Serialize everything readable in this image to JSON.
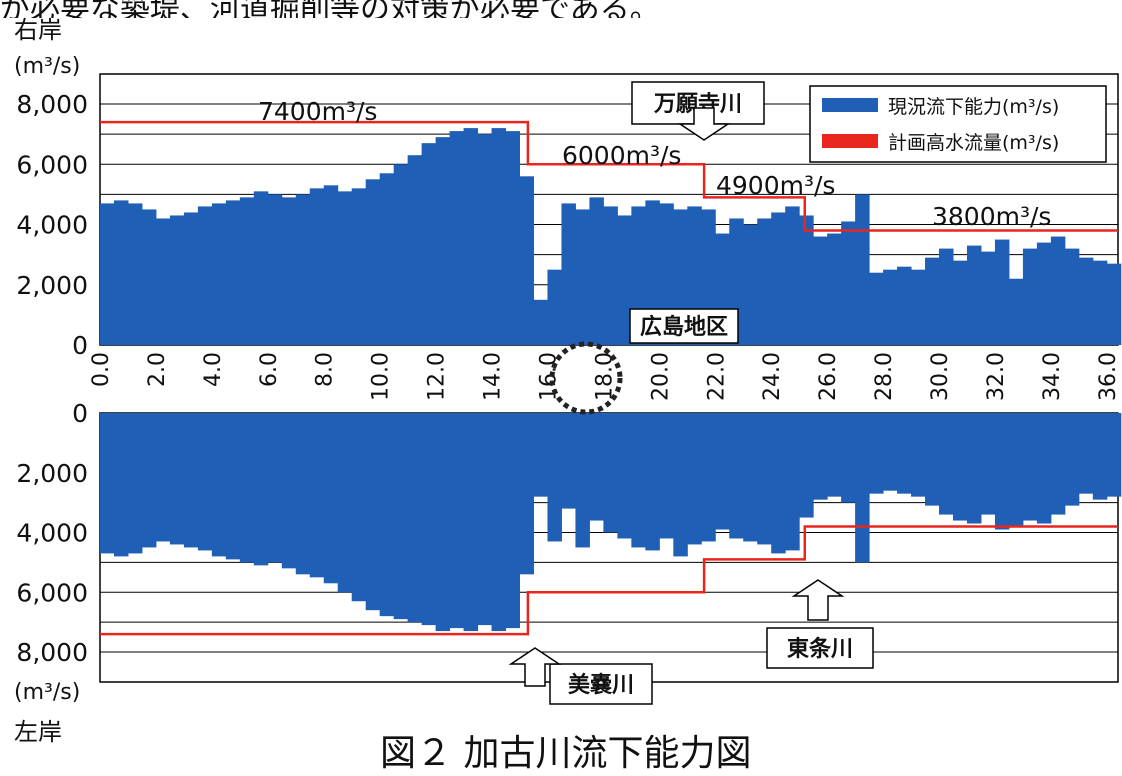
{
  "page": {
    "top_text": "が必要な築堤、河道掘削等の対策が必要である。",
    "caption": "図２ 加古川流下能力図"
  },
  "colors": {
    "capacity": "#1f5fb5",
    "plan": "#e8261e",
    "grid": "#000000"
  },
  "annotations": {
    "right_bank": "右岸",
    "left_bank": "左岸",
    "unit_top": "(m³/s)",
    "unit_bottom": "(m³/s)",
    "river_manganji": "万願寺川",
    "river_minoo": "美嚢川",
    "river_tojo": "東条川",
    "district": "広島地区",
    "label_7400": "7400m³/s",
    "label_6000": "6000m³/s",
    "label_4900": "4900m³/s",
    "label_3800": "3800m³/s"
  },
  "chart_data": {
    "type": "bar",
    "xlim": [
      0,
      36.4
    ],
    "x_tick_labels": [
      "0.0",
      "2.0",
      "4.0",
      "6.0",
      "8.0",
      "10.0",
      "12.0",
      "14.0",
      "16.0",
      "18.0",
      "20.0",
      "22.0",
      "24.0",
      "26.0",
      "28.0",
      "30.0",
      "32.0",
      "34.0",
      "36.0"
    ],
    "x_ticks": [
      0,
      2,
      4,
      6,
      8,
      10,
      12,
      14,
      16,
      18,
      20,
      22,
      24,
      26,
      28,
      30,
      32,
      34,
      36
    ],
    "ylim": [
      0,
      8000
    ],
    "y_ticks": [
      0,
      2000,
      4000,
      6000,
      8000
    ],
    "y_tick_labels": [
      "0",
      "2,000",
      "4,000",
      "6,000",
      "8,000"
    ],
    "grid": "horizontal",
    "legend_position": "top-right",
    "legend": [
      {
        "name": "現況流下能力(m³/s)",
        "color": "#1f5fb5"
      },
      {
        "name": "計画高水流量(m³/s)",
        "color": "#e8261e"
      }
    ],
    "right_bank": {
      "series": [
        {
          "name": "現況流下能力(m³/s)",
          "kind": "bar",
          "x": [
            0,
            0.5,
            1,
            1.5,
            2,
            2.5,
            3,
            3.5,
            4,
            4.5,
            5,
            5.5,
            6,
            6.5,
            7,
            7.5,
            8,
            8.5,
            9,
            9.5,
            10,
            10.5,
            11,
            11.5,
            12,
            12.5,
            13,
            13.5,
            14,
            14.5,
            15,
            15.5,
            16,
            16.5,
            17,
            17.5,
            18,
            18.5,
            19,
            19.5,
            20,
            20.5,
            21,
            21.5,
            22,
            22.5,
            23,
            23.5,
            24,
            24.5,
            25,
            25.5,
            26,
            26.5,
            27,
            27.5,
            28,
            28.5,
            29,
            29.5,
            30,
            30.5,
            31,
            31.5,
            32,
            32.5,
            33,
            33.5,
            34,
            34.5,
            35,
            35.5,
            36
          ],
          "values": [
            4700,
            4800,
            4700,
            4500,
            4200,
            4300,
            4400,
            4600,
            4700,
            4800,
            4900,
            5100,
            5000,
            4900,
            5000,
            5200,
            5300,
            5100,
            5200,
            5500,
            5700,
            6000,
            6300,
            6700,
            6900,
            7100,
            7200,
            7000,
            7200,
            7100,
            5600,
            1500,
            2500,
            4700,
            4500,
            4900,
            4600,
            4300,
            4600,
            4800,
            4700,
            4500,
            4600,
            4500,
            3700,
            4200,
            4000,
            4200,
            4400,
            4600,
            4300,
            3600,
            3700,
            4100,
            5000,
            2400,
            2500,
            2600,
            2500,
            2900,
            3200,
            2800,
            3300,
            3100,
            3500,
            2200,
            3200,
            3400,
            3600,
            3200,
            2900,
            2800,
            2700
          ]
        },
        {
          "name": "計画高水流量(m³/s)",
          "kind": "step",
          "steps": [
            {
              "x_start": 0,
              "x_end": 15.3,
              "value": 7400
            },
            {
              "x_start": 15.3,
              "x_end": 21.6,
              "value": 6000
            },
            {
              "x_start": 21.6,
              "x_end": 25.2,
              "value": 4900
            },
            {
              "x_start": 25.2,
              "x_end": 36.4,
              "value": 3800
            }
          ]
        }
      ]
    },
    "left_bank": {
      "series": [
        {
          "name": "現況流下能力(m³/s)",
          "kind": "bar",
          "x": [
            0,
            0.5,
            1,
            1.5,
            2,
            2.5,
            3,
            3.5,
            4,
            4.5,
            5,
            5.5,
            6,
            6.5,
            7,
            7.5,
            8,
            8.5,
            9,
            9.5,
            10,
            10.5,
            11,
            11.5,
            12,
            12.5,
            13,
            13.5,
            14,
            14.5,
            15,
            15.5,
            16,
            16.5,
            17,
            17.5,
            18,
            18.5,
            19,
            19.5,
            20,
            20.5,
            21,
            21.5,
            22,
            22.5,
            23,
            23.5,
            24,
            24.5,
            25,
            25.5,
            26,
            26.5,
            27,
            27.5,
            28,
            28.5,
            29,
            29.5,
            30,
            30.5,
            31,
            31.5,
            32,
            32.5,
            33,
            33.5,
            34,
            34.5,
            35,
            35.5,
            36
          ],
          "values": [
            4700,
            4800,
            4700,
            4500,
            4300,
            4400,
            4500,
            4600,
            4800,
            4900,
            5000,
            5100,
            5000,
            5200,
            5400,
            5500,
            5700,
            6000,
            6300,
            6600,
            6800,
            6900,
            7000,
            7100,
            7300,
            7200,
            7300,
            7100,
            7300,
            7200,
            5400,
            2800,
            4300,
            3200,
            4500,
            3600,
            4000,
            4200,
            4500,
            4600,
            4200,
            4800,
            4400,
            4300,
            3900,
            4200,
            4300,
            4400,
            4700,
            4600,
            3500,
            2900,
            2800,
            3000,
            5000,
            2700,
            2600,
            2700,
            2800,
            3100,
            3400,
            3600,
            3700,
            3400,
            3900,
            3800,
            3600,
            3700,
            3400,
            3100,
            2700,
            2900,
            2800
          ]
        },
        {
          "name": "計画高水流量(m³/s)",
          "kind": "step",
          "steps": [
            {
              "x_start": 0,
              "x_end": 15.3,
              "value": 7400
            },
            {
              "x_start": 15.3,
              "x_end": 21.6,
              "value": 6000
            },
            {
              "x_start": 21.6,
              "x_end": 25.2,
              "value": 4900
            },
            {
              "x_start": 25.2,
              "x_end": 36.4,
              "value": 3800
            }
          ]
        }
      ]
    }
  }
}
